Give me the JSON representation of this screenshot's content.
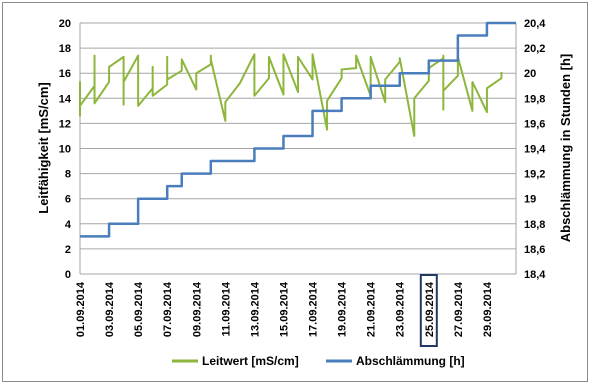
{
  "chart_data": {
    "type": "line",
    "ylabel_left": "Leitfähigkeit [mS/cm]",
    "ylabel_right": "Abschlämmung in Stunden [h]",
    "ylim_left": [
      0,
      20
    ],
    "ylim_right": [
      18.4,
      20.4
    ],
    "yticks_left": [
      "0",
      "2",
      "4",
      "6",
      "8",
      "10",
      "12",
      "14",
      "16",
      "18",
      "20"
    ],
    "yticks_right": [
      "18,4",
      "18,6",
      "18,8",
      "19",
      "19,2",
      "19,4",
      "19,6",
      "19,8",
      "20",
      "20,2",
      "20,4"
    ],
    "x_tick_labels": [
      "01.09.2014",
      "03.09.2014",
      "05.09.2014",
      "07.09.2014",
      "09.09.2014",
      "11.09.2014",
      "13.09.2014",
      "15.09.2014",
      "17.09.2014",
      "19.09.2014",
      "21.09.2014",
      "23.09.2014",
      "25.09.2014",
      "27.09.2014",
      "29.09.2014"
    ],
    "highlighted_tick": "25.09.2014",
    "grid": true,
    "legend_position": "bottom",
    "series": [
      {
        "name": "Leitwert [mS/cm]",
        "color": "#8db63c",
        "axis": "left",
        "x": [
          "2014-09-01",
          "2014-09-01",
          "2014-09-01",
          "2014-09-01",
          "2014-09-02",
          "2014-09-02",
          "2014-09-02",
          "2014-09-02",
          "2014-09-03",
          "2014-09-03",
          "2014-09-04",
          "2014-09-04",
          "2014-09-04",
          "2014-09-04",
          "2014-09-05",
          "2014-09-05",
          "2014-09-06",
          "2014-09-06",
          "2014-09-06",
          "2014-09-06",
          "2014-09-07",
          "2014-09-07",
          "2014-09-07",
          "2014-09-08",
          "2014-09-08",
          "2014-09-09",
          "2014-09-09",
          "2014-09-09",
          "2014-09-10",
          "2014-09-10",
          "2014-09-10",
          "2014-09-11",
          "2014-09-11",
          "2014-09-12",
          "2014-09-13",
          "2014-09-13",
          "2014-09-14",
          "2014-09-14",
          "2014-09-14",
          "2014-09-15",
          "2014-09-15",
          "2014-09-15",
          "2014-09-16",
          "2014-09-16",
          "2014-09-16",
          "2014-09-16",
          "2014-09-17",
          "2014-09-17",
          "2014-09-17",
          "2014-09-18",
          "2014-09-18",
          "2014-09-18",
          "2014-09-19",
          "2014-09-19",
          "2014-09-20",
          "2014-09-20",
          "2014-09-21",
          "2014-09-21",
          "2014-09-21",
          "2014-09-22",
          "2014-09-22",
          "2014-09-23",
          "2014-09-23",
          "2014-09-24",
          "2014-09-24",
          "2014-09-24",
          "2014-09-25",
          "2014-09-25",
          "2014-09-26",
          "2014-09-26",
          "2014-09-26",
          "2014-09-26",
          "2014-09-27",
          "2014-09-27",
          "2014-09-28",
          "2014-09-28",
          "2014-09-28",
          "2014-09-29",
          "2014-09-29",
          "2014-09-30",
          "2014-09-30"
        ],
        "values": [
          14.6,
          15.3,
          12.6,
          13.4,
          15.0,
          16.2,
          17.4,
          13.6,
          15.3,
          16.5,
          17.3,
          13.5,
          14.8,
          15.3,
          17.4,
          13.4,
          14.8,
          15.9,
          16.5,
          14.2,
          15.1,
          17.3,
          15.5,
          16.2,
          17.1,
          14.7,
          15.5,
          16.0,
          16.7,
          17.4,
          17.1,
          12.2,
          13.7,
          15.2,
          17.5,
          14.2,
          15.6,
          16.2,
          17.3,
          14.3,
          16.5,
          17.5,
          14.5,
          14.7,
          16.2,
          17.3,
          15.5,
          16.8,
          17.5,
          11.5,
          12.0,
          13.8,
          15.6,
          16.3,
          16.4,
          17.4,
          14.2,
          15.8,
          17.3,
          13.7,
          15.5,
          16.9,
          17.2,
          11.0,
          12.1,
          14.0,
          15.4,
          16.4,
          17.2,
          17.4,
          13.1,
          14.6,
          15.8,
          17.3,
          13.0,
          14.1,
          15.3,
          12.9,
          14.8,
          15.6,
          16.1
        ]
      },
      {
        "name": "Abschlämmung [h]",
        "color": "#4a7dbb",
        "axis": "right",
        "step": true,
        "x": [
          "2014-09-01",
          "2014-09-03",
          "2014-09-05",
          "2014-09-07",
          "2014-09-08",
          "2014-09-10",
          "2014-09-13",
          "2014-09-15",
          "2014-09-17",
          "2014-09-19",
          "2014-09-21",
          "2014-09-23",
          "2014-09-25",
          "2014-09-27",
          "2014-09-29"
        ],
        "values": [
          18.7,
          18.8,
          19.0,
          19.1,
          19.2,
          19.3,
          19.4,
          19.5,
          19.7,
          19.8,
          19.9,
          20.0,
          20.1,
          20.3,
          20.4
        ]
      }
    ]
  }
}
